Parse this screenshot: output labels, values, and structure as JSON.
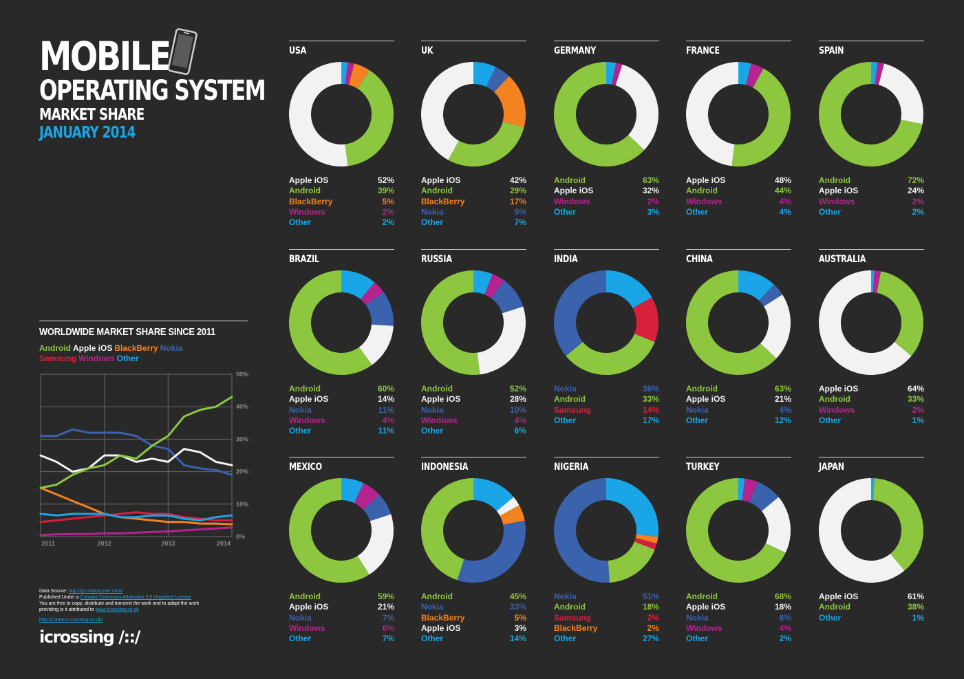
{
  "title": {
    "line1": "MOBILE",
    "line2": "OPERATING SYSTEM",
    "line3": "MARKET SHARE",
    "line4": "JANUARY 2014"
  },
  "colors": {
    "Android": "#8dc63f",
    "Apple iOS": "#f2f2f2",
    "BlackBerry": "#f58220",
    "Nokia": "#3a62ad",
    "Windows": "#b5238f",
    "Samsung": "#d8203c",
    "Other": "#1aa6e6",
    "background": "#2a2929"
  },
  "worldwide": {
    "title": "WORLDWIDE MARKET SHARE SINCE 2011",
    "legend_row1": [
      "Android",
      "Apple iOS",
      "BlackBerry",
      "Nokia"
    ],
    "legend_row2": [
      "Samsung",
      "Windows",
      "Other"
    ]
  },
  "footer": {
    "line1_label": "Data Source: ",
    "line1_link": "http://gs.statcounter.com/",
    "line2_label": "Published Under a ",
    "line2_link": "Creative Commons Attribution 3.0 Unported License",
    "line3": "You are free to copy, distribute and transmit the work and to adapt the work",
    "line4_label": "providing is it attributed to ",
    "line4_link": "www.icrossing.co.uk",
    "link2": "http://connect.icrossing.co.uk/",
    "logo": "icrossing /::/"
  },
  "chart_data": [
    {
      "type": "line",
      "title": "WORLDWIDE MARKET SHARE SINCE 2011",
      "x": [
        2011,
        2011.25,
        2011.5,
        2011.75,
        2012,
        2012.25,
        2012.5,
        2012.75,
        2013,
        2013.25,
        2013.5,
        2013.75,
        2014
      ],
      "x_ticks": [
        "2011",
        "2012",
        "2013",
        "2014"
      ],
      "y_ticks": [
        "0%",
        "10%",
        "20%",
        "30%",
        "40%",
        "50%"
      ],
      "ylim": [
        0,
        50
      ],
      "grid": true,
      "series": [
        {
          "name": "Android",
          "values": [
            15,
            16,
            19,
            21,
            22,
            25,
            24,
            28,
            31,
            37,
            39,
            40,
            43
          ]
        },
        {
          "name": "Apple iOS",
          "values": [
            25,
            23,
            20,
            21,
            25,
            25,
            23,
            24,
            23,
            27,
            26,
            23,
            22
          ]
        },
        {
          "name": "BlackBerry",
          "values": [
            15,
            13,
            11,
            9,
            7,
            6,
            5.5,
            5,
            4.5,
            4.5,
            4,
            4,
            3.8
          ]
        },
        {
          "name": "Nokia",
          "values": [
            31,
            31,
            33,
            32,
            32,
            32,
            31,
            28,
            27,
            22,
            21,
            20.5,
            19
          ]
        },
        {
          "name": "Samsung",
          "values": [
            4.5,
            5,
            5.5,
            6,
            6.5,
            7,
            7.5,
            7,
            7,
            6,
            5.5,
            5,
            5
          ]
        },
        {
          "name": "Windows",
          "values": [
            0.5,
            0.7,
            0.8,
            0.8,
            1,
            1,
            1.2,
            1.4,
            1.6,
            1.9,
            2.2,
            2.5,
            2.8
          ]
        },
        {
          "name": "Other",
          "values": [
            7,
            6.5,
            7,
            7,
            7,
            6,
            6,
            6.5,
            6.5,
            5.5,
            5,
            6,
            6.5
          ]
        }
      ]
    },
    {
      "type": "pie",
      "countries": [
        {
          "name": "USA",
          "slices": [
            {
              "label": "Apple iOS",
              "value": 52,
              "text": "52%"
            },
            {
              "label": "Android",
              "value": 39,
              "text": "39%"
            },
            {
              "label": "BlackBerry",
              "value": 5,
              "text": "5%"
            },
            {
              "label": "Windows",
              "value": 2,
              "text": "2%"
            },
            {
              "label": "Other",
              "value": 2,
              "text": "2%"
            }
          ]
        },
        {
          "name": "UK",
          "slices": [
            {
              "label": "Apple iOS",
              "value": 42,
              "text": "42%"
            },
            {
              "label": "Android",
              "value": 29,
              "text": "29%"
            },
            {
              "label": "BlackBerry",
              "value": 17,
              "text": "17%"
            },
            {
              "label": "Nokia",
              "value": 5,
              "text": "5%"
            },
            {
              "label": "Other",
              "value": 7,
              "text": "7%"
            }
          ]
        },
        {
          "name": "GERMANY",
          "slices": [
            {
              "label": "Android",
              "value": 63,
              "text": "63%"
            },
            {
              "label": "Apple iOS",
              "value": 32,
              "text": "32%"
            },
            {
              "label": "Windows",
              "value": 2,
              "text": "2%"
            },
            {
              "label": "Other",
              "value": 3,
              "text": "3%"
            }
          ]
        },
        {
          "name": "FRANCE",
          "slices": [
            {
              "label": "Apple iOS",
              "value": 48,
              "text": "48%"
            },
            {
              "label": "Android",
              "value": 44,
              "text": "44%"
            },
            {
              "label": "Windows",
              "value": 4,
              "text": "4%"
            },
            {
              "label": "Other",
              "value": 4,
              "text": "4%"
            }
          ]
        },
        {
          "name": "SPAIN",
          "slices": [
            {
              "label": "Android",
              "value": 72,
              "text": "72%"
            },
            {
              "label": "Apple iOS",
              "value": 24,
              "text": "24%"
            },
            {
              "label": "Windows",
              "value": 2,
              "text": "2%"
            },
            {
              "label": "Other",
              "value": 2,
              "text": "2%"
            }
          ]
        },
        {
          "name": "BRAZIL",
          "slices": [
            {
              "label": "Android",
              "value": 60,
              "text": "60%"
            },
            {
              "label": "Apple iOS",
              "value": 14,
              "text": "14%"
            },
            {
              "label": "Nokia",
              "value": 11,
              "text": "11%"
            },
            {
              "label": "Windows",
              "value": 4,
              "text": "4%"
            },
            {
              "label": "Other",
              "value": 11,
              "text": "11%"
            }
          ]
        },
        {
          "name": "RUSSIA",
          "slices": [
            {
              "label": "Android",
              "value": 52,
              "text": "52%"
            },
            {
              "label": "Apple iOS",
              "value": 28,
              "text": "28%"
            },
            {
              "label": "Nokia",
              "value": 10,
              "text": "10%"
            },
            {
              "label": "Windows",
              "value": 4,
              "text": "4%"
            },
            {
              "label": "Other",
              "value": 6,
              "text": "6%"
            }
          ]
        },
        {
          "name": "INDIA",
          "slices": [
            {
              "label": "Nokia",
              "value": 36,
              "text": "36%"
            },
            {
              "label": "Android",
              "value": 33,
              "text": "33%"
            },
            {
              "label": "Samsung",
              "value": 14,
              "text": "14%"
            },
            {
              "label": "Other",
              "value": 17,
              "text": "17%"
            }
          ]
        },
        {
          "name": "CHINA",
          "slices": [
            {
              "label": "Android",
              "value": 63,
              "text": "63%"
            },
            {
              "label": "Apple iOS",
              "value": 21,
              "text": "21%"
            },
            {
              "label": "Nokia",
              "value": 4,
              "text": "4%"
            },
            {
              "label": "Other",
              "value": 12,
              "text": "12%"
            }
          ]
        },
        {
          "name": "AUSTRALIA",
          "slices": [
            {
              "label": "Apple iOS",
              "value": 64,
              "text": "64%"
            },
            {
              "label": "Android",
              "value": 33,
              "text": "33%"
            },
            {
              "label": "Windows",
              "value": 2,
              "text": "2%"
            },
            {
              "label": "Other",
              "value": 1,
              "text": "1%"
            }
          ]
        },
        {
          "name": "MEXICO",
          "slices": [
            {
              "label": "Android",
              "value": 59,
              "text": "59%"
            },
            {
              "label": "Apple iOS",
              "value": 21,
              "text": "21%"
            },
            {
              "label": "Nokia",
              "value": 7,
              "text": "7%"
            },
            {
              "label": "Windows",
              "value": 6,
              "text": "6%"
            },
            {
              "label": "Other",
              "value": 7,
              "text": "7%"
            }
          ]
        },
        {
          "name": "INDONESIA",
          "slices": [
            {
              "label": "Android",
              "value": 45,
              "text": "45%"
            },
            {
              "label": "Nokia",
              "value": 33,
              "text": "33%"
            },
            {
              "label": "BlackBerry",
              "value": 5,
              "text": "5%"
            },
            {
              "label": "Apple iOS",
              "value": 3,
              "text": "3%"
            },
            {
              "label": "Other",
              "value": 14,
              "text": "14%"
            }
          ]
        },
        {
          "name": "NIGERIA",
          "slices": [
            {
              "label": "Nokia",
              "value": 51,
              "text": "51%"
            },
            {
              "label": "Android",
              "value": 18,
              "text": "18%"
            },
            {
              "label": "Samsung",
              "value": 2,
              "text": "2%"
            },
            {
              "label": "BlackBerry",
              "value": 2,
              "text": "2%"
            },
            {
              "label": "Other",
              "value": 27,
              "text": "27%"
            }
          ]
        },
        {
          "name": "TURKEY",
          "slices": [
            {
              "label": "Android",
              "value": 68,
              "text": "68%"
            },
            {
              "label": "Apple iOS",
              "value": 18,
              "text": "18%"
            },
            {
              "label": "Nokia",
              "value": 8,
              "text": "8%"
            },
            {
              "label": "Windows",
              "value": 4,
              "text": "4%"
            },
            {
              "label": "Other",
              "value": 2,
              "text": "2%"
            }
          ]
        },
        {
          "name": "JAPAN",
          "slices": [
            {
              "label": "Apple iOS",
              "value": 61,
              "text": "61%"
            },
            {
              "label": "Android",
              "value": 38,
              "text": "38%"
            },
            {
              "label": "Other",
              "value": 1,
              "text": "1%"
            }
          ]
        }
      ]
    }
  ]
}
